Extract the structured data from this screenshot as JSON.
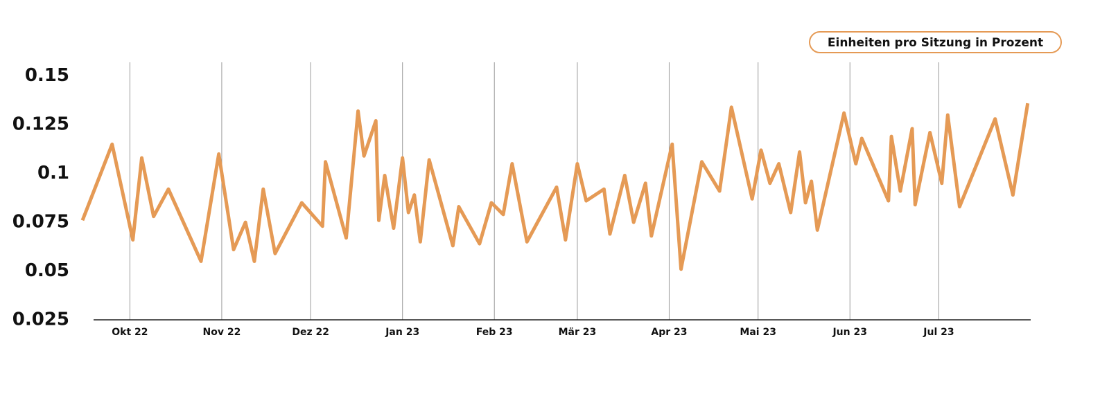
{
  "chart_data": {
    "type": "line",
    "x": [
      -16,
      -6,
      1,
      4,
      8,
      13,
      24,
      30,
      35,
      39,
      42,
      45,
      49,
      58,
      65,
      66,
      73,
      77,
      79,
      83,
      84,
      86,
      89,
      92,
      94,
      96,
      98,
      101,
      109,
      111,
      118,
      122,
      126,
      129,
      134,
      144,
      147,
      151,
      154,
      160,
      162,
      167,
      170,
      174,
      176,
      183,
      186,
      193,
      199,
      203,
      210,
      213,
      216,
      219,
      223,
      226,
      228,
      230,
      232,
      241,
      245,
      247,
      256,
      257,
      260,
      264,
      265,
      270,
      274,
      276,
      280,
      292,
      298,
      303
    ],
    "series": [
      {
        "name": "Einheiten pro Sitzung in Prozent",
        "color": "#e59a55",
        "values": [
          0.076,
          0.115,
          0.066,
          0.108,
          0.078,
          0.092,
          0.055,
          0.11,
          0.061,
          0.075,
          0.055,
          0.092,
          0.059,
          0.085,
          0.073,
          0.106,
          0.067,
          0.132,
          0.109,
          0.127,
          0.076,
          0.099,
          0.072,
          0.108,
          0.08,
          0.089,
          0.065,
          0.107,
          0.063,
          0.083,
          0.064,
          0.085,
          0.079,
          0.105,
          0.065,
          0.093,
          0.066,
          0.105,
          0.086,
          0.092,
          0.069,
          0.099,
          0.075,
          0.095,
          0.068,
          0.115,
          0.051,
          0.106,
          0.091,
          0.134,
          0.087,
          0.112,
          0.095,
          0.105,
          0.08,
          0.111,
          0.085,
          0.096,
          0.071,
          0.131,
          0.105,
          0.118,
          0.086,
          0.119,
          0.091,
          0.123,
          0.084,
          0.121,
          0.095,
          0.13,
          0.083,
          0.128,
          0.089,
          0.136
        ]
      }
    ],
    "xlim": [
      -16,
      304
    ],
    "xticks": [
      {
        "value": 0,
        "label": "Okt 22"
      },
      {
        "value": 31,
        "label": "Nov 22"
      },
      {
        "value": 61,
        "label": "Dez 22"
      },
      {
        "value": 92,
        "label": "Jan 23"
      },
      {
        "value": 123,
        "label": "Feb 23"
      },
      {
        "value": 151,
        "label": "Mär 23"
      },
      {
        "value": 182,
        "label": "Apr 23"
      },
      {
        "value": 212,
        "label": "Mai 23"
      },
      {
        "value": 243,
        "label": "Jun 23"
      },
      {
        "value": 273,
        "label": "Jul 23"
      }
    ],
    "ylim": [
      0.025,
      0.157
    ],
    "yticks": [
      0.025,
      0.05,
      0.075,
      0.1,
      0.125,
      0.15
    ],
    "grid": true,
    "legend": "top-right"
  }
}
